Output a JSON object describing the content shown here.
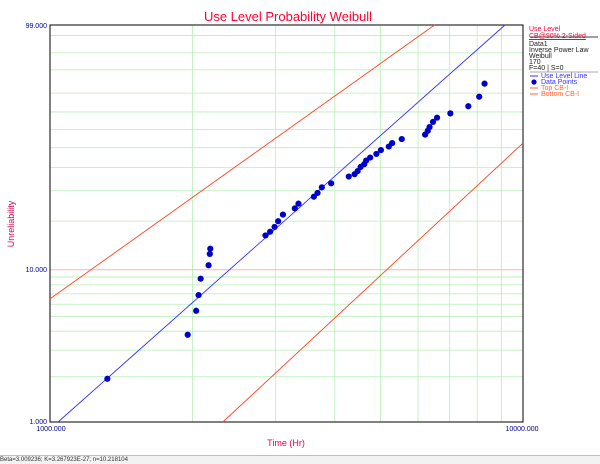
{
  "chart_data": {
    "type": "scatter",
    "title": "Use Level Probability Weibull",
    "xlabel": "Time (Hr)",
    "ylabel": "Unreliability",
    "x_scale": "log",
    "y_scale": "weibull",
    "xlim": [
      1000,
      10000
    ],
    "ylim": [
      1,
      99
    ],
    "x_tick_labels": [
      "1000.000",
      "10000.000"
    ],
    "y_tick_labels": [
      "1.000",
      "10.000",
      "99.000"
    ],
    "grid": true,
    "legend_position": "right",
    "colors": {
      "title": "#ff0033",
      "points": "#0000cc",
      "use_level_line": "#3333ff",
      "cb_lines": "#ff4422",
      "grid": "#b6efb6",
      "grid_10": "#ffb3b3",
      "tick_labels": "#00008b",
      "axis_labels": "#e8004e",
      "side_header": "#ff0033",
      "side_box": "#000000",
      "legend_cb": "#ff6633"
    },
    "series": [
      {
        "name": "Data Points",
        "type": "scatter",
        "points": [
          [
            1322,
            1.94
          ],
          [
            1955,
            3.79
          ],
          [
            2037,
            5.44
          ],
          [
            2061,
            6.88
          ],
          [
            2082,
            8.77
          ],
          [
            2164,
            10.68
          ],
          [
            2177,
            12.59
          ],
          [
            2182,
            13.56
          ],
          [
            2855,
            16.38
          ],
          [
            2920,
            17.27
          ],
          [
            2984,
            18.46
          ],
          [
            3036,
            19.97
          ],
          [
            3108,
            21.87
          ],
          [
            3293,
            23.78
          ],
          [
            3352,
            25.34
          ],
          [
            3613,
            27.76
          ],
          [
            3678,
            29.16
          ],
          [
            3756,
            31.33
          ],
          [
            3930,
            32.96
          ],
          [
            4282,
            35.86
          ],
          [
            4405,
            36.91
          ],
          [
            4471,
            38.32
          ],
          [
            4537,
            40.28
          ],
          [
            4616,
            41.6
          ],
          [
            4660,
            43.34
          ],
          [
            4752,
            44.85
          ],
          [
            4898,
            46.71
          ],
          [
            5007,
            48.74
          ],
          [
            5203,
            50.62
          ],
          [
            5289,
            52.48
          ],
          [
            5542,
            54.7
          ],
          [
            6210,
            57.18
          ],
          [
            6290,
            59.3
          ],
          [
            6344,
            61.42
          ],
          [
            6452,
            64.38
          ],
          [
            6581,
            66.77
          ],
          [
            7021,
            69.19
          ],
          [
            7663,
            73.14
          ],
          [
            8080,
            78.17
          ],
          [
            8293,
            84.47
          ]
        ]
      },
      {
        "name": "Use Level Line",
        "type": "line",
        "points": [
          [
            1040,
            1.0
          ],
          [
            9160,
            99.0
          ]
        ]
      },
      {
        "name": "Top CB-I",
        "type": "line",
        "points": [
          [
            1000,
            6.5
          ],
          [
            6500,
            99.0
          ]
        ]
      },
      {
        "name": "Bottom CB-I",
        "type": "line",
        "points": [
          [
            2320,
            1.0
          ],
          [
            10000,
            52.5
          ]
        ]
      }
    ]
  },
  "side_panel": {
    "header_line1": "Use Level",
    "header_line2": "CB@90% 2-Sided",
    "data_name": "Data1",
    "model": "Inverse Power Law",
    "distribution": "Weibull",
    "use_stress": "170",
    "counts": "F=40 | S=0",
    "legend": {
      "use_level_line": "Use Level Line",
      "data_points": "Data Points",
      "top_cb": "Top CB-I",
      "bottom_cb": "Bottom CB-I"
    }
  },
  "status_bar": "Beta=3.009236; K=3.267923E-27; n=10.218104"
}
